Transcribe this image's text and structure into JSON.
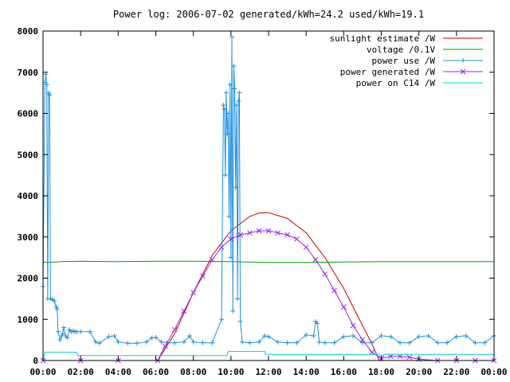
{
  "chart_data": {
    "type": "line",
    "title": "Power log: 2006-07-02 generated/kWh=24.2 used/kWh=19.1",
    "xlabel": "",
    "ylabel": "",
    "xlim": [
      0,
      24
    ],
    "ylim": [
      0,
      8000
    ],
    "x_ticks": [
      "00:00",
      "02:00",
      "04:00",
      "06:00",
      "08:00",
      "10:00",
      "12:00",
      "14:00",
      "16:00",
      "18:00",
      "20:00",
      "22:00",
      "00:00"
    ],
    "y_ticks": [
      0,
      1000,
      2000,
      3000,
      4000,
      5000,
      6000,
      7000,
      8000
    ],
    "grid": false,
    "legend_position": "top-right",
    "series": [
      {
        "name": "sunlight estimate /W",
        "color": "#c00000",
        "style": "line",
        "x": [
          6.1,
          7,
          8,
          9,
          10,
          11,
          11.5,
          12,
          13,
          14,
          15,
          16,
          17,
          17.5,
          17.9
        ],
        "y": [
          0,
          650,
          1650,
          2550,
          3150,
          3500,
          3580,
          3590,
          3450,
          3100,
          2500,
          1750,
          850,
          400,
          0
        ]
      },
      {
        "name": "voltage /0.1V",
        "color": "#00a000",
        "style": "line",
        "x": [
          0,
          0.2,
          1,
          2,
          4,
          6,
          8,
          10,
          12,
          14,
          16,
          18,
          20,
          22,
          24
        ],
        "y": [
          2390,
          2380,
          2400,
          2410,
          2400,
          2410,
          2410,
          2400,
          2380,
          2380,
          2390,
          2400,
          2400,
          2400,
          2400
        ]
      },
      {
        "name": "power use /W",
        "color": "#1e90e0",
        "style": "linespoints",
        "x": [
          0,
          0.1,
          0.15,
          0.2,
          0.25,
          0.3,
          0.35,
          0.4,
          0.5,
          0.6,
          0.7,
          0.75,
          0.8,
          0.9,
          1.0,
          1.05,
          1.1,
          1.2,
          1.3,
          1.4,
          1.5,
          1.6,
          1.7,
          1.8,
          2.0,
          2.5,
          2.8,
          3.0,
          3.5,
          3.8,
          4.0,
          4.5,
          5.0,
          5.5,
          5.8,
          6.0,
          6.3,
          6.6,
          7.0,
          7.5,
          7.8,
          8.0,
          8.5,
          9.0,
          9.5,
          9.6,
          9.65,
          9.7,
          9.75,
          9.8,
          9.85,
          9.9,
          9.95,
          10.0,
          10.05,
          10.1,
          10.15,
          10.2,
          10.25,
          10.3,
          10.35,
          10.4,
          10.45,
          10.5,
          10.6,
          11.0,
          11.5,
          11.8,
          12.0,
          12.5,
          13.0,
          13.5,
          14.0,
          14.4,
          14.5,
          14.6,
          14.7,
          15.0,
          15.5,
          16.0,
          16.5,
          17.0,
          17.5,
          18.0,
          18.5,
          19.0,
          19.5,
          20.0,
          20.5,
          21.0,
          21.5,
          22.0,
          22.5,
          23.0,
          23.5,
          24.0
        ],
        "y": [
          1800,
          6750,
          6950,
          6700,
          1500,
          6500,
          6450,
          1500,
          1480,
          1450,
          1300,
          1250,
          700,
          500,
          600,
          650,
          800,
          600,
          550,
          750,
          700,
          720,
          700,
          700,
          700,
          700,
          450,
          420,
          580,
          600,
          450,
          420,
          420,
          450,
          550,
          560,
          450,
          430,
          430,
          450,
          600,
          450,
          430,
          430,
          1000,
          6200,
          6100,
          4500,
          6500,
          5500,
          6000,
          3500,
          6700,
          2500,
          7850,
          1200,
          7150,
          6600,
          4200,
          6200,
          1500,
          6300,
          6500,
          950,
          450,
          430,
          450,
          600,
          580,
          450,
          430,
          430,
          620,
          600,
          950,
          900,
          450,
          430,
          430,
          580,
          600,
          430,
          430,
          600,
          580,
          430,
          430,
          580,
          600,
          430,
          430,
          580,
          600,
          430,
          430,
          600
        ]
      },
      {
        "name": "power generated /W",
        "color": "#a020f0",
        "style": "linespoints",
        "x": [
          0,
          2,
          4,
          6.1,
          6.5,
          7,
          7.5,
          8,
          8.5,
          9,
          9.5,
          10,
          10.5,
          11,
          11.5,
          12,
          12.5,
          13,
          13.5,
          14,
          14.5,
          15,
          15.5,
          16,
          16.5,
          17,
          17.5,
          18,
          18.5,
          19,
          19.5,
          20,
          21,
          22,
          23,
          24
        ],
        "y": [
          0,
          0,
          0,
          0,
          350,
          750,
          1200,
          1650,
          2050,
          2450,
          2750,
          2950,
          3050,
          3100,
          3150,
          3150,
          3100,
          3050,
          2950,
          2750,
          2450,
          2100,
          1700,
          1300,
          850,
          500,
          200,
          50,
          100,
          100,
          80,
          30,
          0,
          0,
          0,
          0
        ]
      },
      {
        "name": "power on C14 /W",
        "color": "#00d0d0",
        "style": "line",
        "x": [
          0,
          0.1,
          1.8,
          1.85,
          3.6,
          3.65,
          9.8,
          9.85,
          11.8,
          11.85,
          13.4,
          13.45,
          17.9,
          17.95,
          18.1,
          18.15,
          24
        ],
        "y": [
          0,
          200,
          200,
          120,
          120,
          120,
          120,
          220,
          220,
          150,
          150,
          150,
          150,
          120,
          120,
          150,
          150
        ]
      }
    ]
  }
}
